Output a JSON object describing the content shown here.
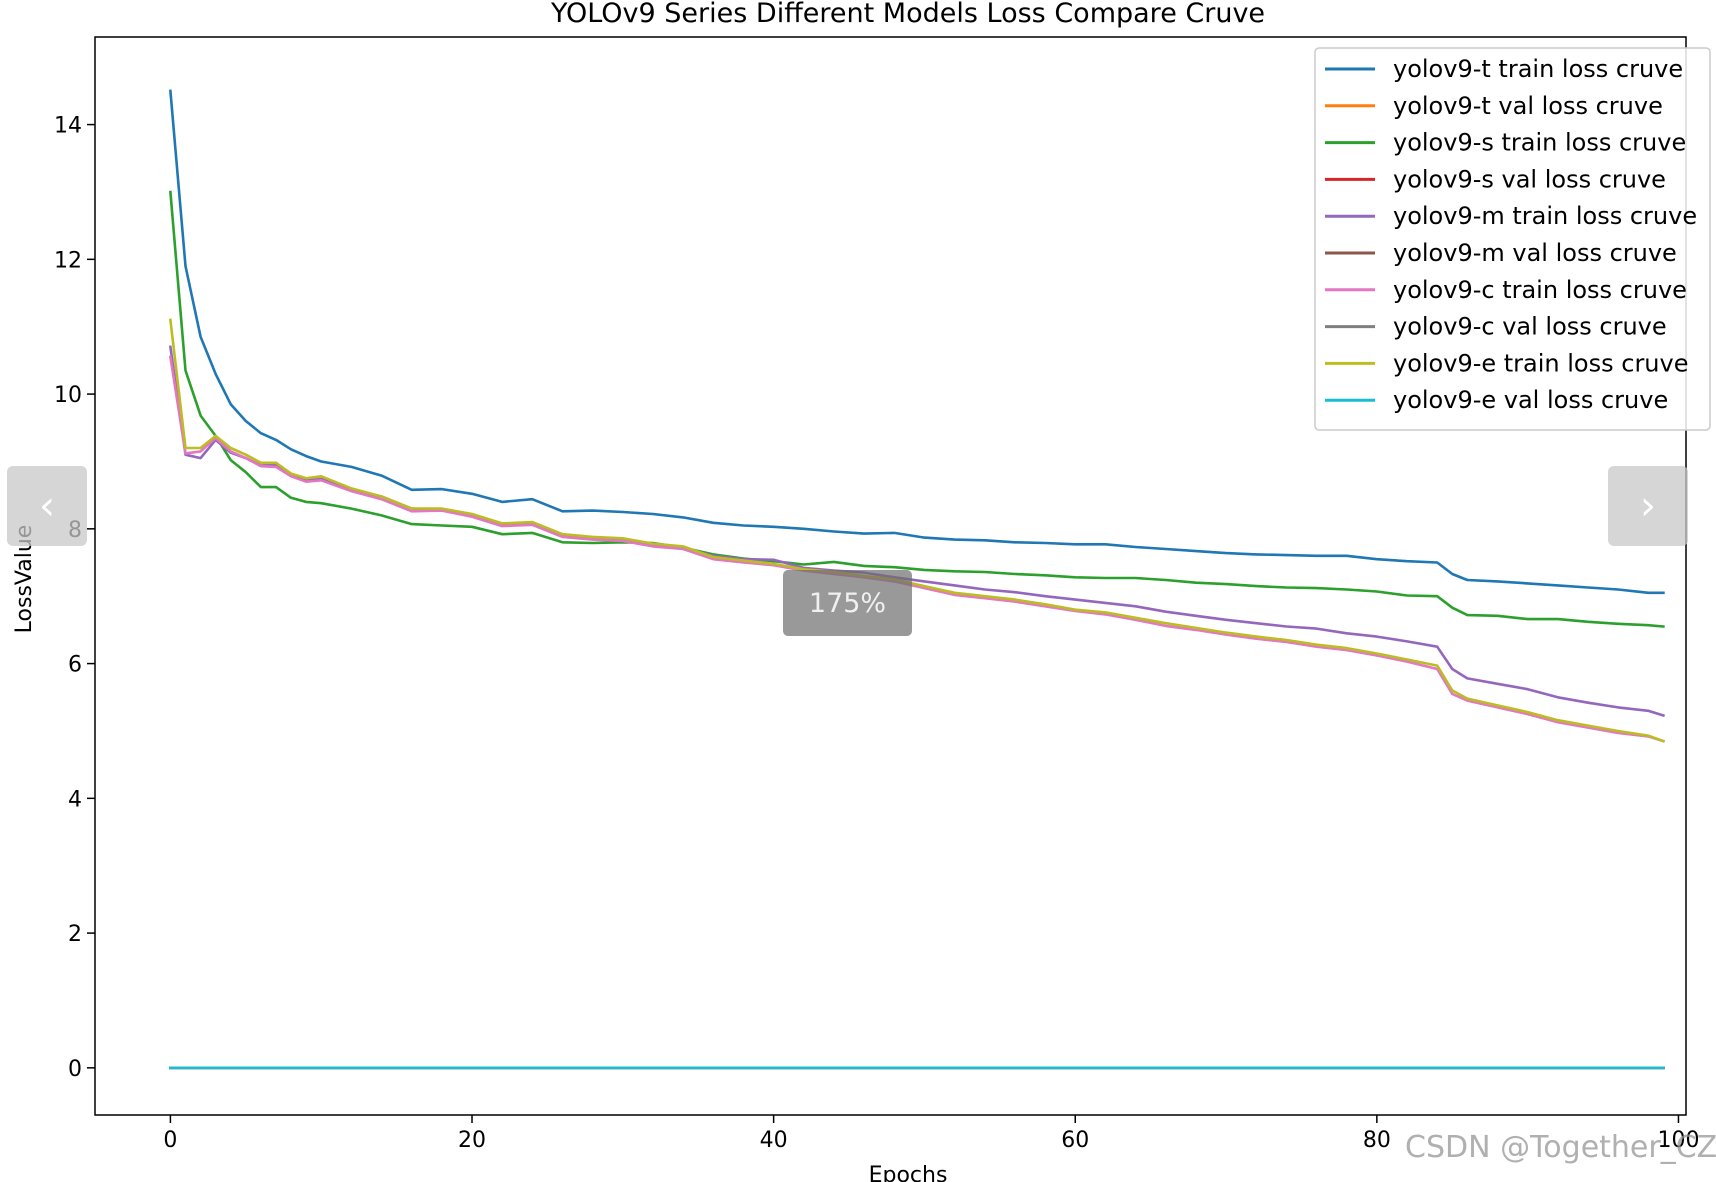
{
  "chart_data": {
    "type": "line",
    "title": "YOLOv9 Series Different Models Loss Compare Cruve",
    "xlabel": "Epochs",
    "ylabel": "LossValue",
    "xlim": [
      -5,
      100.5
    ],
    "ylim": [
      -0.7,
      15.3
    ],
    "xticks": [
      0,
      20,
      40,
      60,
      80,
      100
    ],
    "yticks": [
      0,
      2,
      4,
      6,
      8,
      10,
      12,
      14
    ],
    "grid": false,
    "legend_position": "top-right",
    "series": [
      {
        "name": "yolov9-t train loss cruve",
        "color": "#1f77b4",
        "x": [
          0,
          1,
          2,
          3,
          4,
          5,
          6,
          7,
          8,
          9,
          10,
          12,
          14,
          16,
          18,
          20,
          22,
          24,
          26,
          28,
          30,
          32,
          34,
          36,
          38,
          40,
          42,
          44,
          46,
          48,
          50,
          52,
          54,
          56,
          58,
          60,
          62,
          64,
          66,
          68,
          70,
          72,
          74,
          76,
          78,
          80,
          82,
          84,
          85,
          86,
          88,
          90,
          92,
          94,
          96,
          98,
          99
        ],
        "y": [
          14.5,
          11.9,
          10.85,
          10.3,
          9.85,
          9.6,
          9.42,
          9.32,
          9.18,
          9.08,
          9.0,
          8.92,
          8.79,
          8.58,
          8.59,
          8.52,
          8.4,
          8.44,
          8.26,
          8.27,
          8.25,
          8.22,
          8.17,
          8.09,
          8.05,
          8.03,
          8.0,
          7.96,
          7.93,
          7.94,
          7.87,
          7.84,
          7.83,
          7.8,
          7.79,
          7.77,
          7.77,
          7.73,
          7.7,
          7.67,
          7.64,
          7.62,
          7.61,
          7.6,
          7.6,
          7.55,
          7.52,
          7.5,
          7.33,
          7.24,
          7.22,
          7.19,
          7.16,
          7.13,
          7.1,
          7.05,
          7.05
        ]
      },
      {
        "name": "yolov9-t val loss cruve",
        "color": "#ff7f0e",
        "x": [
          0,
          99
        ],
        "y": [
          0,
          0
        ]
      },
      {
        "name": "yolov9-s train loss cruve",
        "color": "#2ca02c",
        "x": [
          0,
          1,
          2,
          3,
          4,
          5,
          6,
          7,
          8,
          9,
          10,
          12,
          14,
          16,
          18,
          20,
          22,
          24,
          26,
          28,
          30,
          32,
          34,
          36,
          38,
          40,
          42,
          44,
          46,
          48,
          50,
          52,
          54,
          56,
          58,
          60,
          62,
          64,
          66,
          68,
          70,
          72,
          74,
          76,
          78,
          80,
          82,
          84,
          85,
          86,
          88,
          90,
          92,
          94,
          96,
          98,
          99
        ],
        "y": [
          13.0,
          10.35,
          9.68,
          9.38,
          9.02,
          8.84,
          8.62,
          8.62,
          8.46,
          8.4,
          8.38,
          8.3,
          8.2,
          8.07,
          8.05,
          8.03,
          7.92,
          7.94,
          7.8,
          7.79,
          7.8,
          7.79,
          7.72,
          7.62,
          7.56,
          7.52,
          7.47,
          7.51,
          7.45,
          7.43,
          7.39,
          7.37,
          7.36,
          7.33,
          7.31,
          7.28,
          7.27,
          7.27,
          7.24,
          7.2,
          7.18,
          7.15,
          7.13,
          7.12,
          7.1,
          7.07,
          7.01,
          7.0,
          6.83,
          6.72,
          6.71,
          6.66,
          6.66,
          6.62,
          6.59,
          6.57,
          6.55
        ]
      },
      {
        "name": "yolov9-s val loss cruve",
        "color": "#d62728",
        "x": [
          0,
          99
        ],
        "y": [
          0,
          0
        ]
      },
      {
        "name": "yolov9-m train loss cruve",
        "color": "#9467bd",
        "x": [
          0,
          1,
          2,
          3,
          4,
          5,
          6,
          7,
          8,
          9,
          10,
          12,
          14,
          16,
          18,
          20,
          22,
          24,
          26,
          28,
          30,
          32,
          34,
          36,
          38,
          40,
          42,
          44,
          46,
          48,
          50,
          52,
          54,
          56,
          58,
          60,
          62,
          64,
          66,
          68,
          70,
          72,
          74,
          76,
          78,
          80,
          82,
          84,
          85,
          86,
          88,
          90,
          92,
          94,
          96,
          98,
          99
        ],
        "y": [
          10.7,
          9.1,
          9.05,
          9.32,
          9.13,
          9.05,
          8.94,
          8.95,
          8.8,
          8.72,
          8.74,
          8.58,
          8.48,
          8.3,
          8.28,
          8.2,
          8.07,
          8.08,
          7.9,
          7.86,
          7.84,
          7.76,
          7.72,
          7.6,
          7.55,
          7.54,
          7.42,
          7.38,
          7.35,
          7.28,
          7.22,
          7.16,
          7.1,
          7.06,
          7.0,
          6.95,
          6.9,
          6.85,
          6.77,
          6.71,
          6.65,
          6.6,
          6.55,
          6.52,
          6.45,
          6.4,
          6.33,
          6.25,
          5.92,
          5.78,
          5.7,
          5.62,
          5.5,
          5.42,
          5.35,
          5.3,
          5.23
        ]
      },
      {
        "name": "yolov9-m val loss cruve",
        "color": "#8c564b",
        "x": [
          0,
          99
        ],
        "y": [
          0,
          0
        ]
      },
      {
        "name": "yolov9-c train loss cruve",
        "color": "#e377c2",
        "x": [
          0,
          1,
          2,
          3,
          4,
          5,
          6,
          7,
          8,
          9,
          10,
          12,
          14,
          16,
          18,
          20,
          22,
          24,
          26,
          28,
          30,
          32,
          34,
          36,
          38,
          40,
          42,
          44,
          46,
          48,
          50,
          52,
          54,
          56,
          58,
          60,
          62,
          64,
          66,
          68,
          70,
          72,
          74,
          76,
          78,
          80,
          82,
          84,
          85,
          86,
          88,
          90,
          92,
          94,
          96,
          98,
          99
        ],
        "y": [
          10.55,
          9.12,
          9.15,
          9.35,
          9.15,
          9.05,
          8.93,
          8.92,
          8.78,
          8.7,
          8.72,
          8.56,
          8.44,
          8.26,
          8.27,
          8.18,
          8.04,
          8.06,
          7.88,
          7.84,
          7.82,
          7.74,
          7.7,
          7.55,
          7.5,
          7.46,
          7.38,
          7.33,
          7.28,
          7.22,
          7.12,
          7.02,
          6.97,
          6.92,
          6.85,
          6.78,
          6.73,
          6.65,
          6.56,
          6.5,
          6.43,
          6.37,
          6.32,
          6.25,
          6.2,
          6.12,
          6.03,
          5.92,
          5.55,
          5.45,
          5.35,
          5.25,
          5.13,
          5.05,
          4.97,
          4.92,
          4.85
        ]
      },
      {
        "name": "yolov9-c val loss cruve",
        "color": "#7f7f7f",
        "x": [
          0,
          99
        ],
        "y": [
          0,
          0
        ]
      },
      {
        "name": "yolov9-e train loss cruve",
        "color": "#bcbd22",
        "x": [
          0,
          1,
          2,
          3,
          4,
          5,
          6,
          7,
          8,
          9,
          10,
          12,
          14,
          16,
          18,
          20,
          22,
          24,
          26,
          28,
          30,
          32,
          34,
          36,
          38,
          40,
          42,
          44,
          46,
          48,
          50,
          52,
          54,
          56,
          58,
          60,
          62,
          64,
          66,
          68,
          70,
          72,
          74,
          76,
          78,
          80,
          82,
          84,
          85,
          86,
          88,
          90,
          92,
          94,
          96,
          98,
          99
        ],
        "y": [
          11.1,
          9.2,
          9.2,
          9.38,
          9.2,
          9.1,
          8.98,
          8.98,
          8.82,
          8.75,
          8.78,
          8.6,
          8.48,
          8.3,
          8.3,
          8.22,
          8.08,
          8.1,
          7.92,
          7.88,
          7.86,
          7.78,
          7.74,
          7.58,
          7.53,
          7.48,
          7.4,
          7.36,
          7.3,
          7.25,
          7.15,
          7.05,
          7.0,
          6.95,
          6.88,
          6.8,
          6.76,
          6.68,
          6.6,
          6.53,
          6.46,
          6.4,
          6.35,
          6.28,
          6.23,
          6.15,
          6.06,
          5.97,
          5.6,
          5.48,
          5.38,
          5.28,
          5.16,
          5.08,
          5.0,
          4.93,
          4.85
        ]
      },
      {
        "name": "yolov9-e val loss cruve",
        "color": "#17becf",
        "x": [
          0,
          99
        ],
        "y": [
          0,
          0
        ]
      }
    ]
  },
  "ui": {
    "prev_icon": "chevron-left-icon",
    "next_icon": "chevron-right-icon",
    "prev_glyph": "‹",
    "next_glyph": "›",
    "zoom_label": "175%",
    "watermark": "CSDN @Together_CZ"
  }
}
